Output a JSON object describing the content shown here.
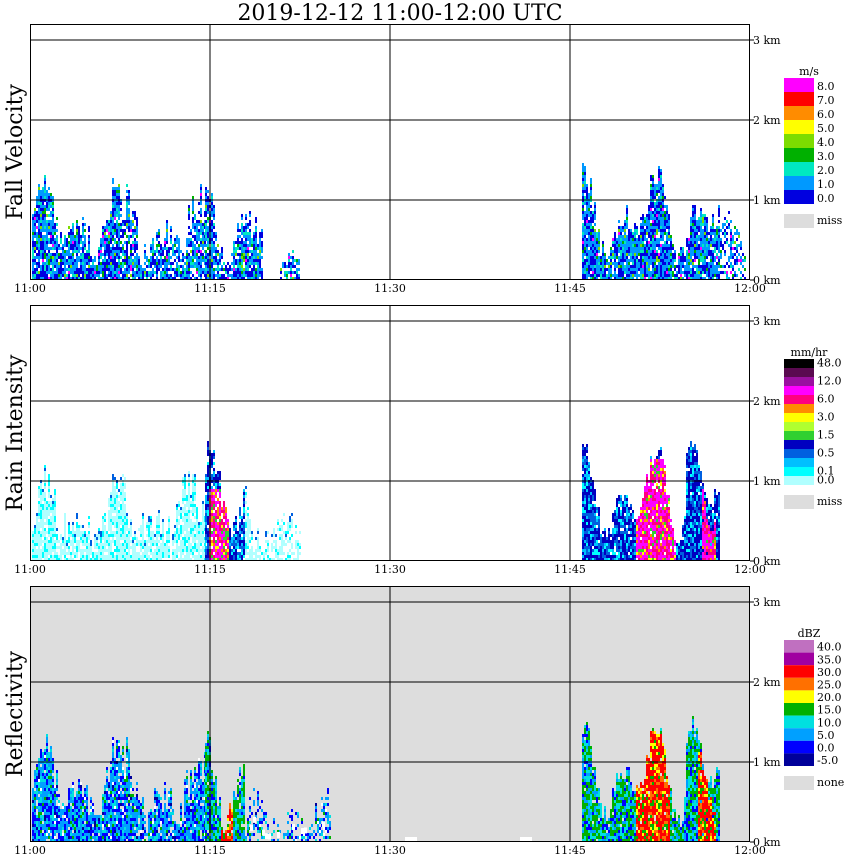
{
  "title": "2019-12-12   11:00-12:00 UTC",
  "chart_data": [
    {
      "type": "heatmap",
      "title": "Fall Velocity",
      "unit": "m/s",
      "x_ticks": [
        "11:00",
        "11:15",
        "11:30",
        "11:45",
        "12:00"
      ],
      "y_ticks": [
        "0 km",
        "1 km",
        "2 km",
        "3 km"
      ],
      "background": "#ffffff",
      "legend": [
        {
          "label": "8.0",
          "color": "#ff00ff"
        },
        {
          "label": "7.0",
          "color": "#ff0000"
        },
        {
          "label": "6.0",
          "color": "#ff8c00"
        },
        {
          "label": "5.0",
          "color": "#ffff00"
        },
        {
          "label": "4.0",
          "color": "#7ddc00"
        },
        {
          "label": "3.0",
          "color": "#00b000"
        },
        {
          "label": "2.0",
          "color": "#00e8c0"
        },
        {
          "label": "1.0",
          "color": "#0099ff"
        },
        {
          "label": "0.0",
          "color": "#0000e0"
        }
      ],
      "missing_label": "miss",
      "missing_color": "#dddddd"
    },
    {
      "type": "heatmap",
      "title": "Rain Intensity",
      "unit": "mm/hr",
      "x_ticks": [
        "11:00",
        "11:15",
        "11:30",
        "11:45",
        "12:00"
      ],
      "y_ticks": [
        "0 km",
        "1 km",
        "2 km",
        "3 km"
      ],
      "background": "#ffffff",
      "legend": [
        {
          "label": "48.0",
          "color": "#000000"
        },
        {
          "label": "",
          "color": "#5a0a50"
        },
        {
          "label": "12.0",
          "color": "#9a10a0"
        },
        {
          "label": "",
          "color": "#ff00ff"
        },
        {
          "label": "6.0",
          "color": "#ff0080"
        },
        {
          "label": "",
          "color": "#ff8c00"
        },
        {
          "label": "3.0",
          "color": "#ffff00"
        },
        {
          "label": "",
          "color": "#b0ff30"
        },
        {
          "label": "1.5",
          "color": "#30d030"
        },
        {
          "label": "",
          "color": "#0000c0"
        },
        {
          "label": "0.5",
          "color": "#0060e0"
        },
        {
          "label": "",
          "color": "#00c0ff"
        },
        {
          "label": "0.1",
          "color": "#00ffff"
        },
        {
          "label": "0.0",
          "color": "#b0ffff"
        }
      ],
      "missing_label": "miss",
      "missing_color": "#dddddd"
    },
    {
      "type": "heatmap",
      "title": "Reflectivity",
      "unit": "dBZ",
      "x_ticks": [
        "11:00",
        "11:15",
        "11:30",
        "11:45",
        "12:00"
      ],
      "y_ticks": [
        "0 km",
        "1 km",
        "2 km",
        "3 km"
      ],
      "background": "#dddddd",
      "legend": [
        {
          "label": "40.0",
          "color": "#c070c0"
        },
        {
          "label": "35.0",
          "color": "#a000a0"
        },
        {
          "label": "30.0",
          "color": "#ff0000"
        },
        {
          "label": "25.0",
          "color": "#ff7000"
        },
        {
          "label": "20.0",
          "color": "#ffff00"
        },
        {
          "label": "15.0",
          "color": "#00b000"
        },
        {
          "label": "10.0",
          "color": "#00e0e0"
        },
        {
          "label": "5.0",
          "color": "#00a0ff"
        },
        {
          "label": "0.0",
          "color": "#0000ff"
        },
        {
          "label": "-5.0",
          "color": "#00009a"
        }
      ],
      "missing_label": "none",
      "missing_color": "#dddddd"
    }
  ]
}
